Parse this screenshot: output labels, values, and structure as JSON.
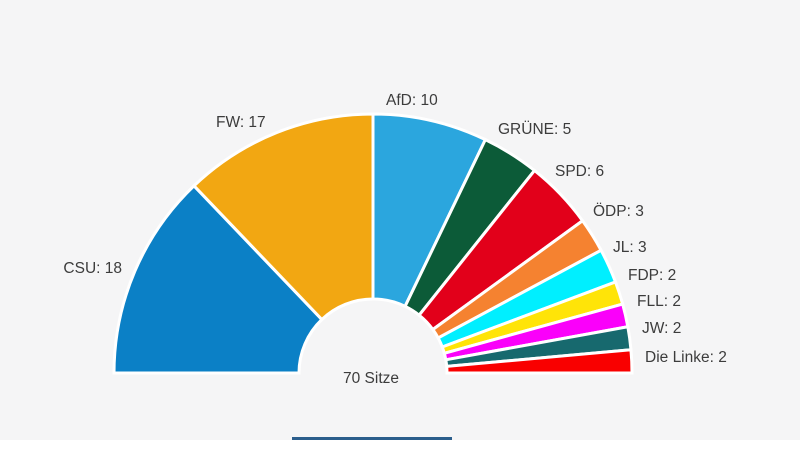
{
  "chart_data": {
    "type": "pie",
    "variant": "hemicycle-half-donut",
    "title": "",
    "center_label": "70 Sitze",
    "total_seats": 70,
    "legend_position": "outside-slice-labels",
    "background": "#F5F5F6",
    "gap_color": "#FFFFFF",
    "series": [
      {
        "name": "CSU",
        "value": 18,
        "label": "CSU: 18",
        "color": "#0B80C6"
      },
      {
        "name": "FW",
        "value": 17,
        "label": "FW: 17",
        "color": "#F2A712"
      },
      {
        "name": "AfD",
        "value": 10,
        "label": "AfD: 10",
        "color": "#2BA6DE"
      },
      {
        "name": "GRÜNE",
        "value": 5,
        "label": "GRÜNE: 5",
        "color": "#0C5B38"
      },
      {
        "name": "SPD",
        "value": 6,
        "label": "SPD: 6",
        "color": "#E2001A"
      },
      {
        "name": "ÖDP",
        "value": 3,
        "label": "ÖDP: 3",
        "color": "#F58230"
      },
      {
        "name": "JL",
        "value": 3,
        "label": "JL: 3",
        "color": "#00EFFF"
      },
      {
        "name": "FDP",
        "value": 2,
        "label": "FDP: 2",
        "color": "#FFE408"
      },
      {
        "name": "FLL",
        "value": 2,
        "label": "FLL: 2",
        "color": "#FA00FA"
      },
      {
        "name": "JW",
        "value": 2,
        "label": "JW: 2",
        "color": "#17696E"
      },
      {
        "name": "Die Linke",
        "value": 2,
        "label": "Die Linke: 2",
        "color": "#F90000"
      }
    ]
  },
  "ui": {
    "divider_color": "#2B5E8C"
  }
}
